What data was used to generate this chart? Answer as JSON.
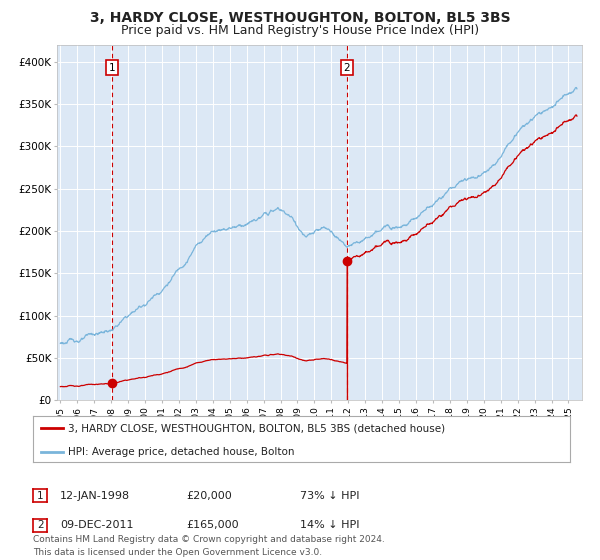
{
  "title": "3, HARDY CLOSE, WESTHOUGHTON, BOLTON, BL5 3BS",
  "subtitle": "Price paid vs. HM Land Registry's House Price Index (HPI)",
  "title_fontsize": 10,
  "subtitle_fontsize": 9,
  "background_color": "#ffffff",
  "plot_bg_color": "#dce8f5",
  "grid_color": "#ffffff",
  "hpi_color": "#7ab5db",
  "price_color": "#cc0000",
  "sale1_date": 1998.04,
  "sale1_price": 20000,
  "sale2_date": 2011.92,
  "sale2_price": 165000,
  "legend_entries": [
    "3, HARDY CLOSE, WESTHOUGHTON, BOLTON, BL5 3BS (detached house)",
    "HPI: Average price, detached house, Bolton"
  ],
  "table_rows": [
    {
      "num": "1",
      "date": "12-JAN-1998",
      "price": "£20,000",
      "hpi": "73% ↓ HPI"
    },
    {
      "num": "2",
      "date": "09-DEC-2011",
      "price": "£165,000",
      "hpi": "14% ↓ HPI"
    }
  ],
  "footer": "Contains HM Land Registry data © Crown copyright and database right 2024.\nThis data is licensed under the Open Government Licence v3.0.",
  "ylim": [
    0,
    420000
  ],
  "xlim_start": 1994.8,
  "xlim_end": 2025.8
}
